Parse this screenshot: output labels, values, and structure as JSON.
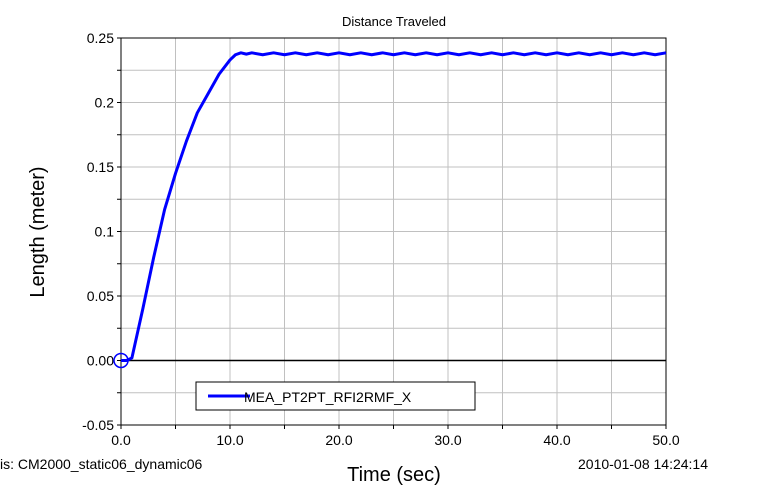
{
  "chart_data": {
    "type": "line",
    "title": "Distance Traveled",
    "xlabel": "Time (sec)",
    "ylabel": "Length (meter)",
    "xlim": [
      0,
      50
    ],
    "ylim": [
      -0.05,
      0.25
    ],
    "x_ticks": [
      "0.0",
      "10.0",
      "20.0",
      "30.0",
      "40.0",
      "50.0"
    ],
    "y_ticks": [
      "-0.05",
      "0.00",
      "0.05",
      "0.1",
      "0.15",
      "0.2",
      "0.25"
    ],
    "grid": true,
    "legend_position": "bottom-center",
    "series": [
      {
        "name": "MEA_PT2PT_RFI2RMF_X",
        "color": "#0000ff",
        "x": [
          0,
          0.5,
          1.0,
          2.0,
          3.0,
          4.0,
          5.0,
          6.0,
          7.0,
          8.0,
          9.0,
          10.0,
          10.5,
          11.0,
          11.5,
          12,
          13,
          14,
          15,
          16,
          17,
          18,
          19,
          20,
          21,
          22,
          23,
          24,
          25,
          26,
          27,
          28,
          29,
          30,
          31,
          32,
          33,
          34,
          35,
          36,
          37,
          38,
          39,
          40,
          41,
          42,
          43,
          44,
          45,
          46,
          47,
          48,
          49,
          50
        ],
        "y": [
          0.0,
          0.0,
          0.002,
          0.04,
          0.08,
          0.117,
          0.145,
          0.17,
          0.192,
          0.207,
          0.222,
          0.233,
          0.237,
          0.2385,
          0.2375,
          0.2385,
          0.237,
          0.2385,
          0.237,
          0.2385,
          0.237,
          0.2385,
          0.237,
          0.2385,
          0.237,
          0.2385,
          0.237,
          0.2385,
          0.237,
          0.2385,
          0.237,
          0.2385,
          0.237,
          0.2385,
          0.237,
          0.2385,
          0.237,
          0.2385,
          0.237,
          0.2385,
          0.237,
          0.2385,
          0.237,
          0.2385,
          0.237,
          0.2385,
          0.237,
          0.2385,
          0.237,
          0.2385,
          0.237,
          0.2385,
          0.237,
          0.2385
        ]
      }
    ]
  },
  "footer": {
    "analysis": "is:  CM2000_static06_dynamic06",
    "timestamp": "2010-01-08 14:24:14"
  }
}
